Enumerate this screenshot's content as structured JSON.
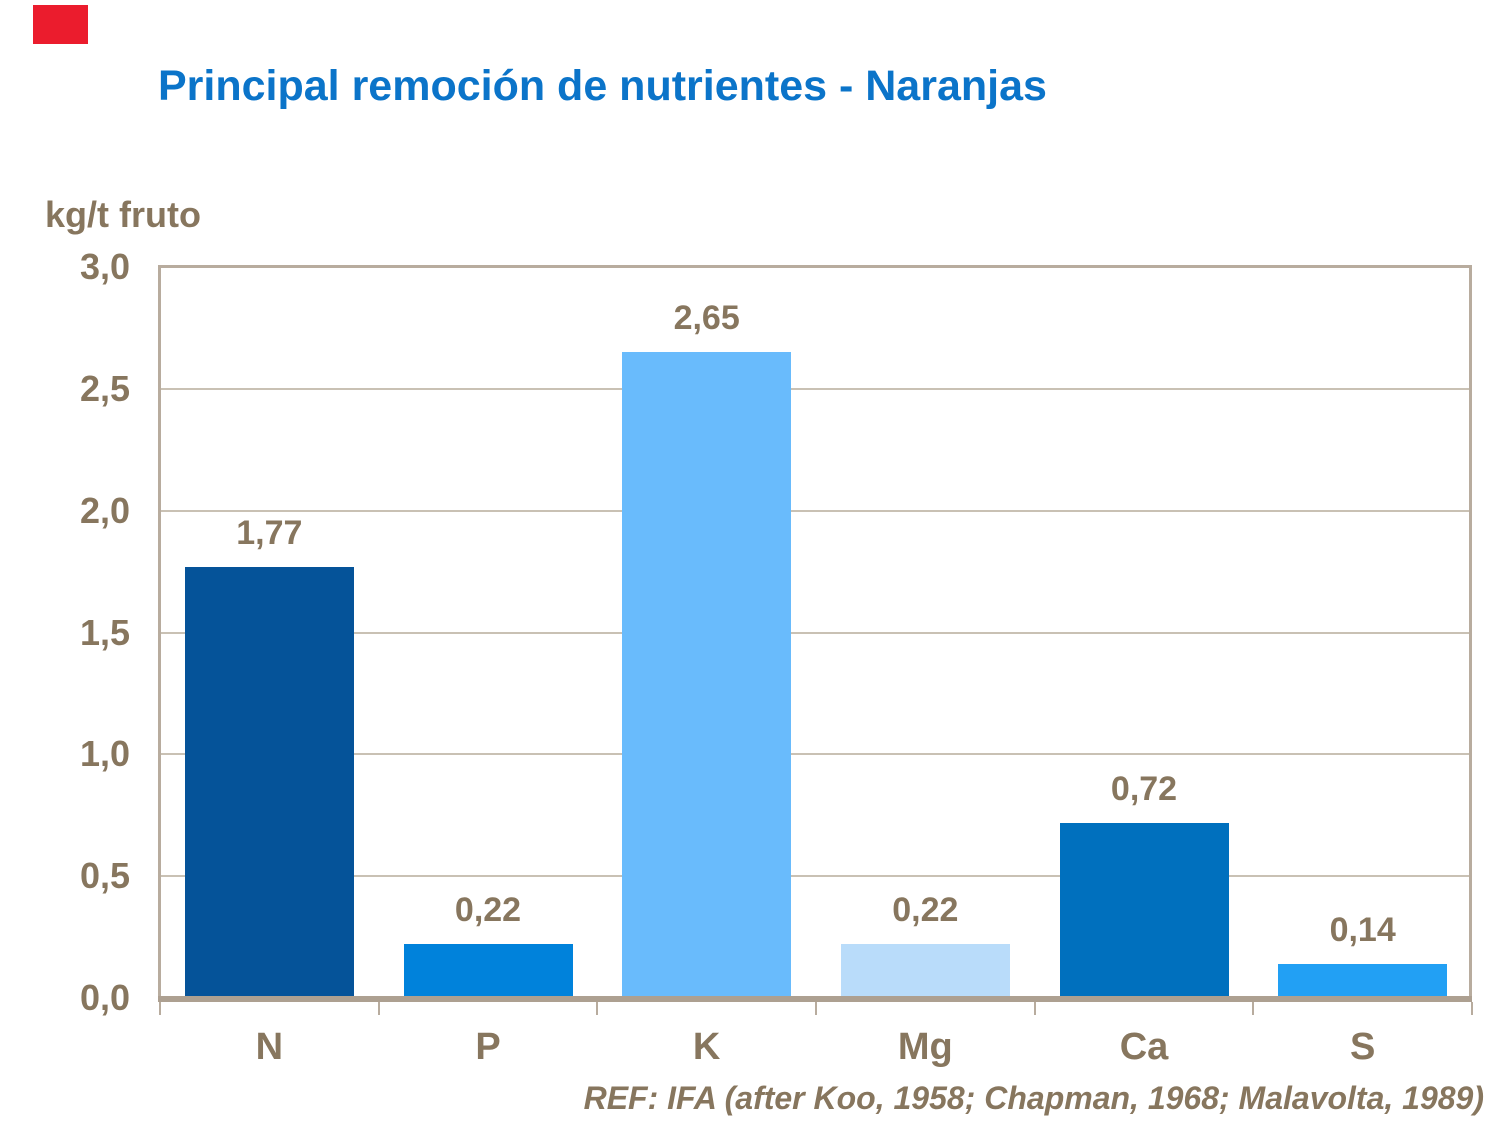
{
  "slide": {
    "title": "Principal remoción de nutrientes - Naranjas",
    "reference": "REF: IFA (after Koo, 1958; Chapman, 1968; Malavolta, 1989)"
  },
  "colors": {
    "title_blue": "#0B74C9",
    "text_brown": "#87765E",
    "axis_frame": "#B8AC9E",
    "axis_baseline": "#ADA091",
    "gridline": "#C9C1B4",
    "accent_red": "#EB1C2D",
    "background": "#FFFFFF"
  },
  "chart_data": {
    "type": "bar",
    "title": "Principal remoción de nutrientes - Naranjas",
    "xlabel": "",
    "ylabel": "kg/t fruto",
    "categories": [
      "N",
      "P",
      "K",
      "Mg",
      "Ca",
      "S"
    ],
    "values": [
      1.77,
      0.22,
      2.65,
      0.22,
      0.72,
      0.14
    ],
    "value_labels": [
      "1,77",
      "0,22",
      "2,65",
      "0,22",
      "0,72",
      "0,14"
    ],
    "bar_colors": [
      "#055399",
      "#0082DB",
      "#69BBFC",
      "#B9DCFA",
      "#0070BE",
      "#22A0F4"
    ],
    "ylim": [
      0,
      3.0
    ],
    "ytick_step": 0.5,
    "ytick_labels": [
      "0,0",
      "0,5",
      "1,0",
      "1,5",
      "2,0",
      "2,5",
      "3,0"
    ],
    "grid": true,
    "legend": false,
    "annotation": "REF: IFA (after Koo, 1958; Chapman, 1968; Malavolta, 1989)"
  }
}
